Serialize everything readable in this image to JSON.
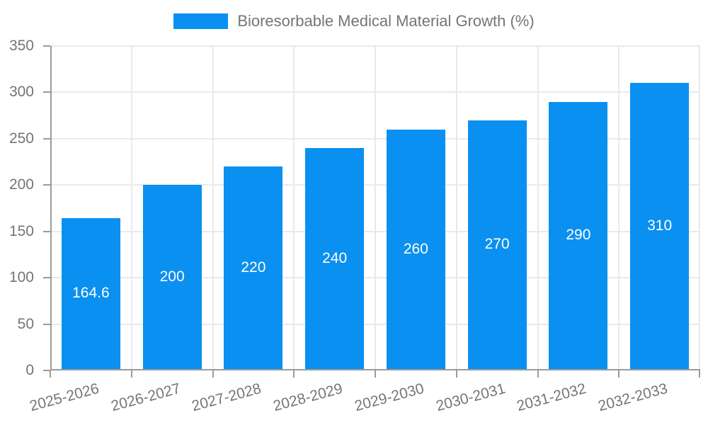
{
  "chart_data": {
    "type": "bar",
    "legend": "Bioresorbable Medical Material Growth (%)",
    "categories": [
      "2025-2026",
      "2026-2027",
      "2027-2028",
      "2028-2029",
      "2029-2030",
      "2030-2031",
      "2031-2032",
      "2032-2033"
    ],
    "values": [
      164.6,
      200,
      220,
      240,
      260,
      270,
      290,
      310
    ],
    "ylim": [
      0,
      350
    ],
    "yticks": [
      0,
      50,
      100,
      150,
      200,
      250,
      300,
      350
    ],
    "grid": true,
    "legend_position": "top-center",
    "value_labels": "inside-center",
    "x_label_rotation_deg": -15
  },
  "colors": {
    "bar": "#0a90f0",
    "bar_label": "#ffffff",
    "axis_line": "#9b9b9b",
    "grid_line": "#e9e9e9",
    "tick_text": "#757575",
    "legend_text": "#757575",
    "background": "#ffffff"
  }
}
